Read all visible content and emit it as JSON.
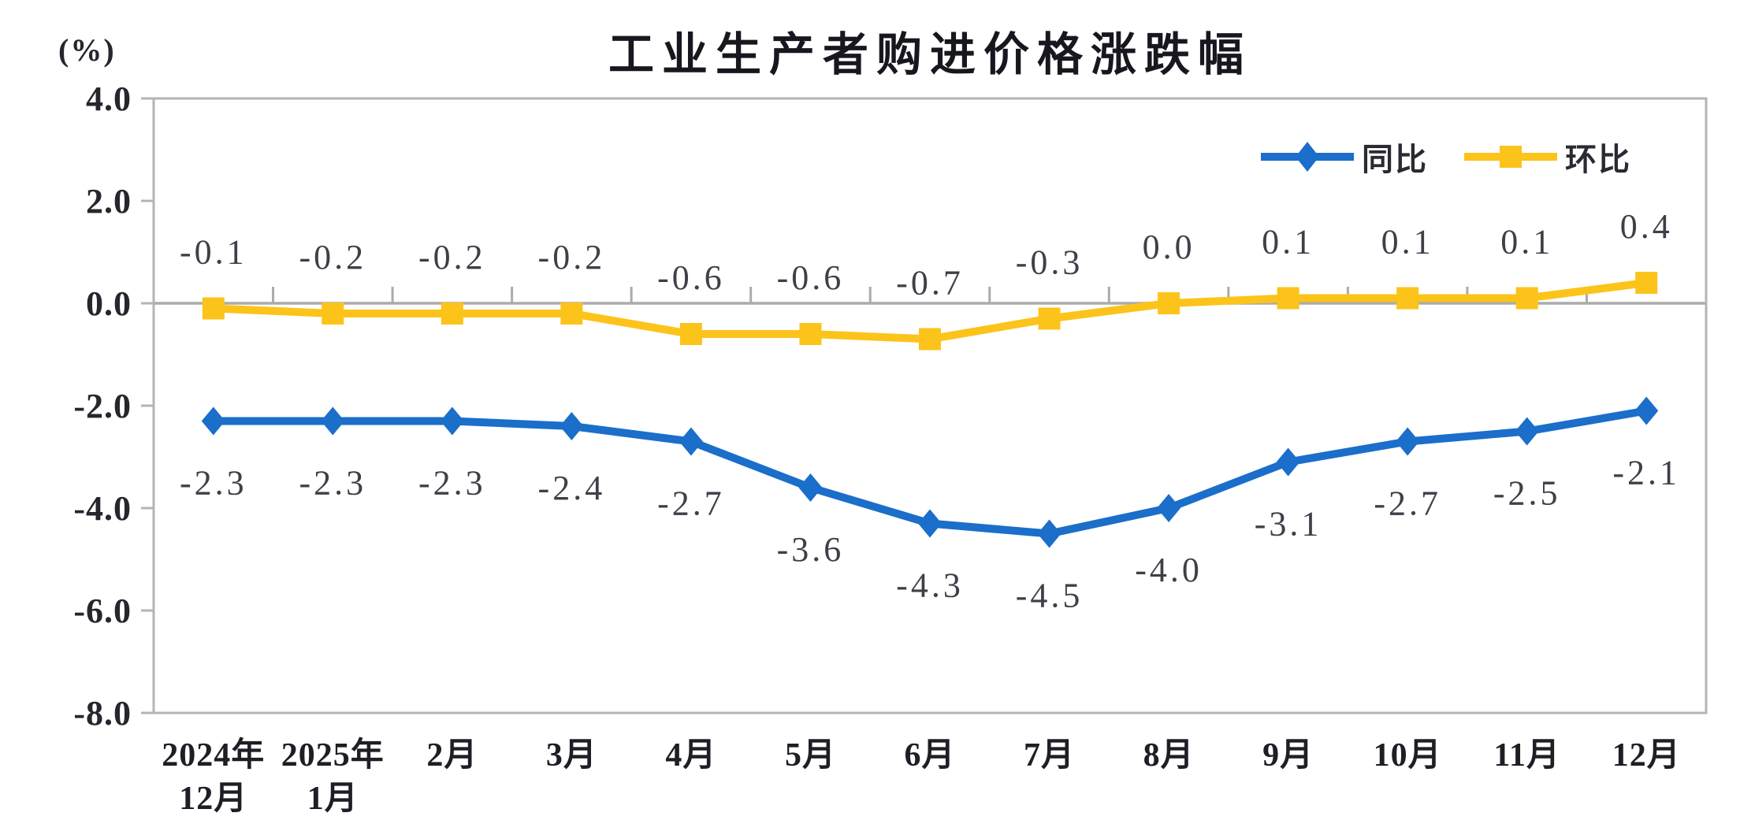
{
  "title": "工业生产者购进价格涨跌幅",
  "unit_label": "(%)",
  "legend": {
    "items": [
      {
        "label": "同比",
        "marker": "diamond"
      },
      {
        "label": "环比",
        "marker": "square"
      }
    ]
  },
  "chart_data": {
    "type": "line",
    "title": "工业生产者购进价格涨跌幅",
    "ylabel": "(%)",
    "xlabel": "",
    "ylim": [
      -8.0,
      4.0
    ],
    "grid": false,
    "zero_axis_line": true,
    "legend_position": "top-right",
    "yticks": [
      {
        "value": 4.0,
        "label": "4.0"
      },
      {
        "value": 2.0,
        "label": "2.0"
      },
      {
        "value": 0.0,
        "label": "0.0"
      },
      {
        "value": -2.0,
        "label": "-2.0"
      },
      {
        "value": -4.0,
        "label": "-4.0"
      },
      {
        "value": -6.0,
        "label": "-6.0"
      },
      {
        "value": -8.0,
        "label": "-8.0"
      }
    ],
    "categories": [
      "2024年\n12月",
      "2025年\n1月",
      "2月",
      "3月",
      "4月",
      "5月",
      "6月",
      "7月",
      "8月",
      "9月",
      "10月",
      "11月",
      "12月"
    ],
    "series": [
      {
        "name": "同比",
        "marker": "diamond",
        "color": "#1b6ec9",
        "label_side": "below",
        "values": [
          -2.3,
          -2.3,
          -2.3,
          -2.4,
          -2.7,
          -3.6,
          -4.3,
          -4.5,
          -4.0,
          -3.1,
          -2.7,
          -2.5,
          -2.1
        ],
        "labels": [
          "-2.3",
          "-2.3",
          "-2.3",
          "-2.4",
          "-2.7",
          "-3.6",
          "-4.3",
          "-4.5",
          "-4.0",
          "-3.1",
          "-2.7",
          "-2.5",
          "-2.1"
        ]
      },
      {
        "name": "环比",
        "marker": "square",
        "color": "#fcc31a",
        "label_side": "above",
        "values": [
          -0.1,
          -0.2,
          -0.2,
          -0.2,
          -0.6,
          -0.6,
          -0.7,
          -0.3,
          0.0,
          0.1,
          0.1,
          0.1,
          0.4
        ],
        "labels": [
          "-0.1",
          "-0.2",
          "-0.2",
          "-0.2",
          "-0.6",
          "-0.6",
          "-0.7",
          "-0.3",
          "0.0",
          "0.1",
          "0.1",
          "0.1",
          "0.4"
        ]
      }
    ],
    "colors": {
      "frame_line": "#b4b4b4",
      "zero_line": "#ababab",
      "data_label_text": "#3f3f49",
      "axis_text": "#26262e"
    }
  }
}
